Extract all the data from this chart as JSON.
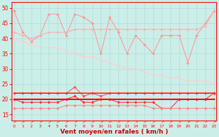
{
  "x": [
    0,
    1,
    2,
    3,
    4,
    5,
    6,
    7,
    8,
    9,
    10,
    11,
    12,
    13,
    14,
    15,
    16,
    17,
    18,
    19,
    20,
    21,
    22,
    23
  ],
  "series": [
    {
      "name": "rafales_jagged",
      "color": "#ff9999",
      "linewidth": 0.8,
      "markersize": 2.0,
      "marker": "D",
      "values": [
        49,
        42,
        39,
        41,
        48,
        48,
        41,
        48,
        47,
        45,
        35,
        47,
        42,
        35,
        41,
        38,
        35,
        41,
        41,
        41,
        32,
        41,
        45,
        49
      ]
    },
    {
      "name": "rafales_avg_upper",
      "color": "#ffaaaa",
      "linewidth": 0.8,
      "markersize": 1.5,
      "marker": "D",
      "values": [
        42,
        41,
        40,
        41,
        42,
        42,
        42,
        43,
        43,
        43,
        43,
        43,
        43,
        43,
        43,
        43,
        43,
        43,
        43,
        43,
        43,
        43,
        44,
        49
      ]
    },
    {
      "name": "rafales_declining",
      "color": "#ffcccc",
      "linewidth": 0.8,
      "markersize": 1.5,
      "marker": "D",
      "values": [
        40,
        39,
        38,
        37,
        37,
        37,
        36,
        35,
        34,
        34,
        33,
        32,
        31,
        30,
        30,
        29,
        28,
        28,
        27,
        27,
        26,
        26,
        26,
        25
      ]
    },
    {
      "name": "vent_22_markers",
      "color": "#ff5555",
      "linewidth": 0.8,
      "markersize": 2.0,
      "marker": "D",
      "values": [
        22,
        22,
        22,
        22,
        22,
        22,
        22,
        24,
        21,
        22,
        21,
        22,
        22,
        22,
        22,
        22,
        22,
        22,
        22,
        22,
        22,
        22,
        22,
        22
      ]
    },
    {
      "name": "vent_22_flat",
      "color": "#ff2222",
      "linewidth": 1.2,
      "markersize": 0,
      "marker": null,
      "values": [
        22,
        22,
        22,
        22,
        22,
        22,
        22,
        22,
        22,
        22,
        22,
        22,
        22,
        22,
        22,
        22,
        22,
        22,
        22,
        22,
        22,
        22,
        22,
        22
      ]
    },
    {
      "name": "vent_moyen_jagged",
      "color": "#ff3333",
      "linewidth": 0.8,
      "markersize": 2.0,
      "marker": "D",
      "values": [
        20,
        19,
        19,
        19,
        19,
        19,
        20,
        21,
        19,
        19,
        20,
        20,
        19,
        19,
        19,
        19,
        19,
        17,
        17,
        20,
        20,
        20,
        20,
        22
      ]
    },
    {
      "name": "vent_moyen_flat",
      "color": "#ff0000",
      "linewidth": 1.5,
      "markersize": 0,
      "marker": null,
      "values": [
        20,
        20,
        20,
        20,
        20,
        20,
        20,
        20,
        20,
        20,
        20,
        20,
        20,
        20,
        20,
        20,
        20,
        20,
        20,
        20,
        20,
        20,
        20,
        20
      ]
    },
    {
      "name": "vent_min",
      "color": "#ff8888",
      "linewidth": 0.8,
      "markersize": 2.0,
      "marker": "D",
      "values": [
        17,
        17,
        17,
        17,
        17,
        17,
        18,
        18,
        18,
        18,
        18,
        18,
        18,
        18,
        18,
        18,
        17,
        17,
        17,
        17,
        17,
        17,
        17,
        17
      ]
    }
  ],
  "xlim": [
    -0.3,
    23.3
  ],
  "ylim": [
    13,
    52
  ],
  "yticks": [
    15,
    20,
    25,
    30,
    35,
    40,
    45,
    50
  ],
  "xticks": [
    0,
    1,
    2,
    3,
    4,
    5,
    6,
    7,
    8,
    9,
    10,
    11,
    12,
    13,
    14,
    15,
    16,
    17,
    18,
    19,
    20,
    21,
    22,
    23
  ],
  "xlabel": "Vent moyen/en rafales ( km/h )",
  "bg_color": "#cceee8",
  "grid_color": "#aadddd",
  "tick_color": "#ff0000",
  "label_color": "#cc0000",
  "arrow_char": "↗"
}
